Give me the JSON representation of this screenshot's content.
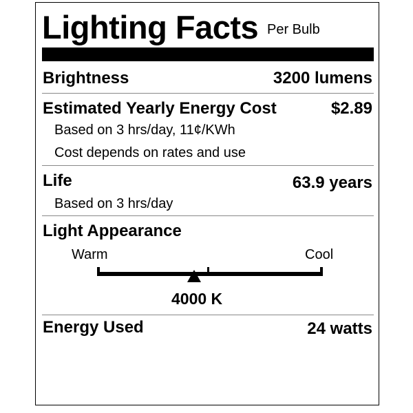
{
  "header": {
    "title": "Lighting Facts",
    "subtitle": "Per Bulb"
  },
  "brightness": {
    "label": "Brightness",
    "value": "3200 lumens"
  },
  "energy_cost": {
    "label": "Estimated Yearly Energy Cost",
    "value": "$2.89",
    "note1": "Based on 3 hrs/day, 11¢/KWh",
    "note2": "Cost depends on rates and use"
  },
  "life": {
    "label": "Life",
    "value": "63.9 years",
    "note": "Based on 3 hrs/day"
  },
  "appearance": {
    "label": "Light Appearance",
    "warm": "Warm",
    "cool": "Cool",
    "value": "4000 K",
    "marker_fraction": 0.43
  },
  "energy_used": {
    "label": "Energy Used",
    "value": "24 watts"
  }
}
